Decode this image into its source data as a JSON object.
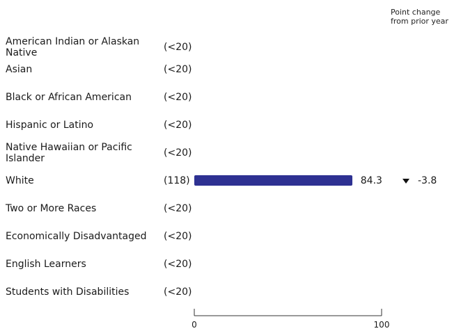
{
  "header": {
    "change_note": "Point change from prior year"
  },
  "chart_data": {
    "type": "bar",
    "orientation": "horizontal",
    "categories": [
      "American Indian or Alaskan Native",
      "Asian",
      "Black or African American",
      "Hispanic or Latino",
      "Native Hawaiian or Pacific Islander",
      "White",
      "Two or More Races",
      "Economically Disadvantaged",
      "English Learners",
      "Students with Disabilities"
    ],
    "counts": [
      "(<20)",
      "(<20)",
      "(<20)",
      "(<20)",
      "(<20)",
      "(118)",
      "(<20)",
      "(<20)",
      "(<20)",
      "(<20)"
    ],
    "values": [
      null,
      null,
      null,
      null,
      null,
      84.3,
      null,
      null,
      null,
      null
    ],
    "value_labels": [
      "",
      "",
      "",
      "",
      "",
      "84.3",
      "",
      "",
      "",
      ""
    ],
    "changes": [
      null,
      null,
      null,
      null,
      null,
      -3.8,
      null,
      null,
      null,
      null
    ],
    "change_labels": [
      "",
      "",
      "",
      "",
      "",
      "-3.8",
      "",
      "",
      "",
      ""
    ],
    "xlim": [
      0,
      100
    ],
    "xticks": [
      "0",
      "100"
    ],
    "bar_color": "#2e3192",
    "title": "",
    "xlabel": "",
    "ylabel": ""
  }
}
